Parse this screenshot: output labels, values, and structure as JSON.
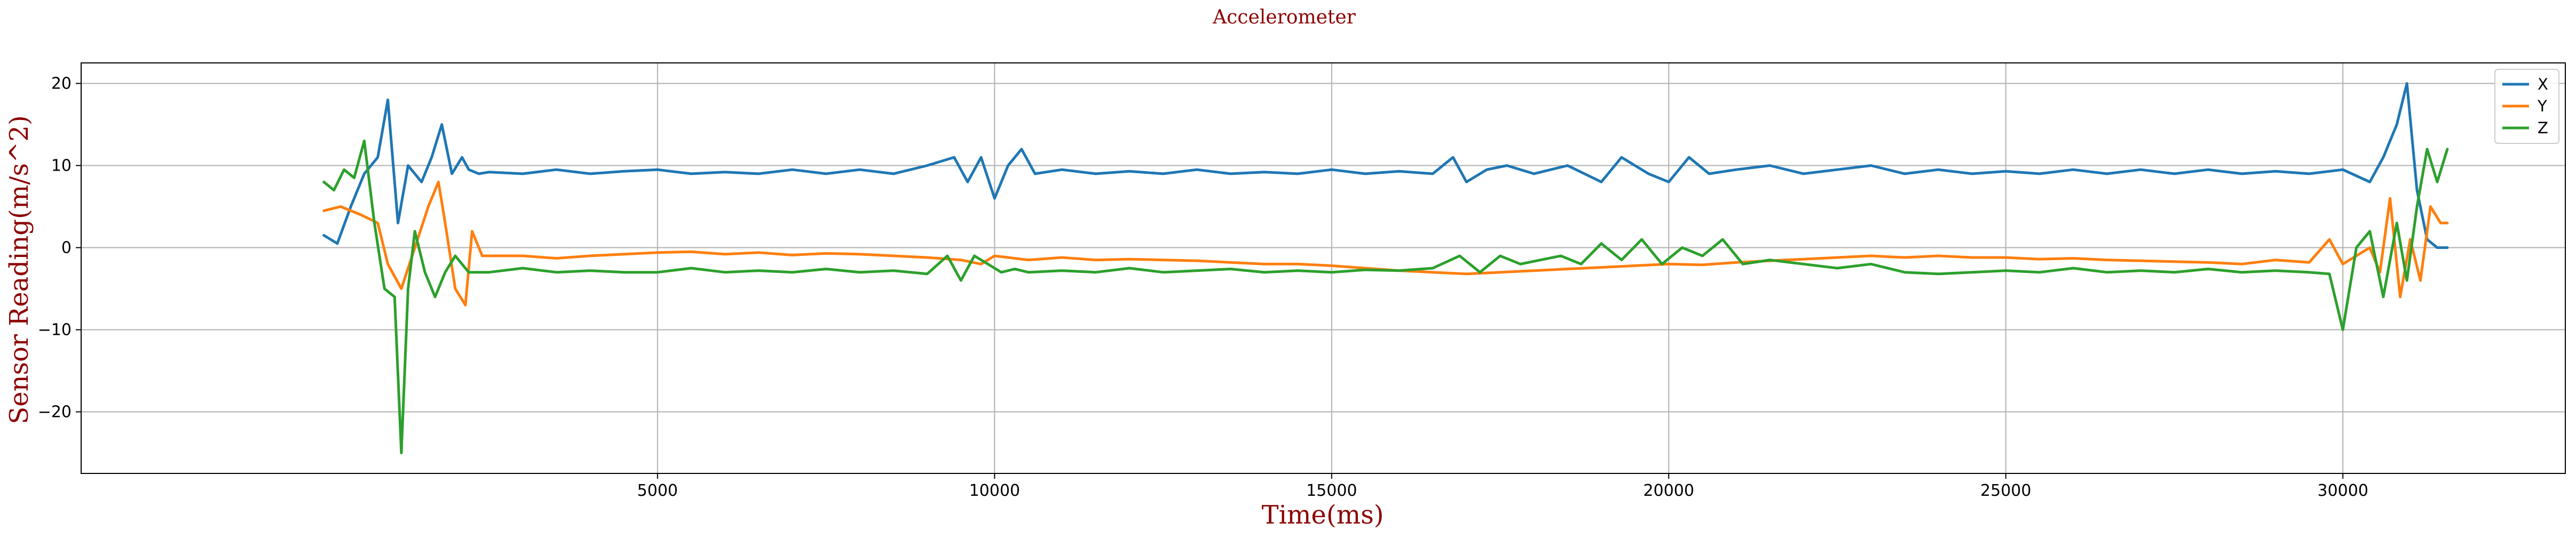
{
  "chart_data": {
    "type": "line",
    "title": "Accelerometer",
    "xlabel": "Time(ms)",
    "ylabel": "Sensor Reading(m/s^2)",
    "xlim": [
      -3550,
      33300
    ],
    "ylim": [
      -27.5,
      22.5
    ],
    "xticks": [
      5000,
      10000,
      15000,
      20000,
      25000,
      30000
    ],
    "yticks": [
      -20,
      -10,
      0,
      10,
      20
    ],
    "grid": true,
    "legend_position": "top-right",
    "label_color": "#8b0000",
    "series": [
      {
        "name": "X",
        "color": "#1f77b4",
        "x": [
          50,
          250,
          450,
          650,
          850,
          1000,
          1150,
          1300,
          1500,
          1650,
          1800,
          1950,
          2100,
          2200,
          2350,
          2500,
          3000,
          3500,
          4000,
          4500,
          5000,
          5500,
          6000,
          6500,
          7000,
          7500,
          8000,
          8500,
          9000,
          9400,
          9600,
          9800,
          10000,
          10200,
          10400,
          10600,
          11000,
          11500,
          12000,
          12500,
          13000,
          13500,
          14000,
          14500,
          15000,
          15500,
          16000,
          16500,
          16800,
          17000,
          17300,
          17600,
          18000,
          18500,
          19000,
          19300,
          19700,
          20000,
          20300,
          20600,
          21000,
          21500,
          22000,
          22500,
          23000,
          23500,
          24000,
          24500,
          25000,
          25500,
          26000,
          26500,
          27000,
          27500,
          28000,
          28500,
          29000,
          29500,
          30000,
          30400,
          30600,
          30800,
          30950,
          31100,
          31250,
          31400,
          31550
        ],
        "y": [
          1.5,
          0.5,
          5,
          9,
          11,
          18,
          3,
          10,
          8,
          11,
          15,
          9,
          11,
          9.5,
          9,
          9.2,
          9,
          9.5,
          9,
          9.3,
          9.5,
          9,
          9.2,
          9,
          9.5,
          9,
          9.5,
          9,
          10,
          11,
          8,
          11,
          6,
          10,
          12,
          9,
          9.5,
          9,
          9.3,
          9,
          9.5,
          9,
          9.2,
          9,
          9.5,
          9,
          9.3,
          9,
          11,
          8,
          9.5,
          10,
          9,
          10,
          8,
          11,
          9,
          8,
          11,
          9,
          9.5,
          10,
          9,
          9.5,
          10,
          9,
          9.5,
          9,
          9.3,
          9,
          9.5,
          9,
          9.5,
          9,
          9.5,
          9,
          9.3,
          9,
          9.5,
          8,
          11,
          15,
          20,
          7,
          1,
          0,
          0
        ]
      },
      {
        "name": "Y",
        "color": "#ff7f0e",
        "x": [
          50,
          300,
          600,
          850,
          1000,
          1200,
          1400,
          1600,
          1750,
          1850,
          2000,
          2150,
          2250,
          2400,
          3000,
          3500,
          4000,
          4500,
          5000,
          5500,
          6000,
          6500,
          7000,
          7500,
          8000,
          8500,
          9000,
          9500,
          9800,
          10000,
          10500,
          11000,
          11500,
          12000,
          12500,
          13000,
          13500,
          14000,
          14500,
          15000,
          15500,
          16000,
          16500,
          17000,
          17500,
          18000,
          18500,
          19000,
          19500,
          20000,
          20500,
          21000,
          21500,
          22000,
          22500,
          23000,
          23500,
          24000,
          24500,
          25000,
          25500,
          26000,
          26500,
          27000,
          27500,
          28000,
          28500,
          29000,
          29500,
          29800,
          30000,
          30200,
          30400,
          30550,
          30700,
          30850,
          31000,
          31150,
          31300,
          31450,
          31550
        ],
        "y": [
          4.5,
          5,
          4,
          3,
          -2,
          -5,
          0,
          5,
          8,
          3,
          -5,
          -7,
          2,
          -1,
          -1,
          -1.3,
          -1,
          -0.8,
          -0.6,
          -0.5,
          -0.8,
          -0.6,
          -0.9,
          -0.7,
          -0.8,
          -1,
          -1.2,
          -1.5,
          -2,
          -1,
          -1.5,
          -1.2,
          -1.5,
          -1.4,
          -1.5,
          -1.6,
          -1.8,
          -2,
          -2,
          -2.2,
          -2.5,
          -2.8,
          -3,
          -3.2,
          -3,
          -2.8,
          -2.6,
          -2.4,
          -2.2,
          -2,
          -2.1,
          -1.8,
          -1.6,
          -1.4,
          -1.2,
          -1,
          -1.2,
          -1,
          -1.2,
          -1.2,
          -1.4,
          -1.3,
          -1.5,
          -1.6,
          -1.7,
          -1.8,
          -2,
          -1.5,
          -1.8,
          1,
          -2,
          -1,
          0,
          -3,
          6,
          -6,
          1,
          -4,
          5,
          3,
          3
        ]
      },
      {
        "name": "Z",
        "color": "#2ca02c",
        "x": [
          50,
          200,
          350,
          500,
          650,
          800,
          950,
          1100,
          1200,
          1300,
          1400,
          1550,
          1700,
          1850,
          2000,
          2200,
          2500,
          3000,
          3500,
          4000,
          4500,
          5000,
          5500,
          6000,
          6500,
          7000,
          7500,
          8000,
          8500,
          9000,
          9300,
          9500,
          9700,
          9900,
          10100,
          10300,
          10500,
          11000,
          11500,
          12000,
          12500,
          13000,
          13500,
          14000,
          14500,
          15000,
          15500,
          16000,
          16500,
          16900,
          17200,
          17500,
          17800,
          18100,
          18400,
          18700,
          19000,
          19300,
          19600,
          19900,
          20200,
          20500,
          20800,
          21100,
          21500,
          22000,
          22500,
          23000,
          23500,
          24000,
          24500,
          25000,
          25500,
          26000,
          26500,
          27000,
          27500,
          28000,
          28500,
          29000,
          29500,
          29800,
          30000,
          30200,
          30400,
          30600,
          30800,
          30950,
          31100,
          31250,
          31400,
          31550
        ],
        "y": [
          8,
          7,
          9.5,
          8.5,
          13,
          3,
          -5,
          -6,
          -25,
          -5,
          2,
          -3,
          -6,
          -3,
          -1,
          -3,
          -3,
          -2.5,
          -3,
          -2.8,
          -3,
          -3,
          -2.5,
          -3,
          -2.8,
          -3,
          -2.6,
          -3,
          -2.8,
          -3.2,
          -1,
          -4,
          -1,
          -2,
          -3,
          -2.6,
          -3,
          -2.8,
          -3,
          -2.5,
          -3,
          -2.8,
          -2.6,
          -3,
          -2.8,
          -3,
          -2.7,
          -2.8,
          -2.5,
          -1,
          -3,
          -1,
          -2,
          -1.5,
          -1,
          -2,
          0.5,
          -1.5,
          1,
          -2,
          0,
          -1,
          1,
          -2,
          -1.5,
          -2,
          -2.5,
          -2,
          -3,
          -3.2,
          -3,
          -2.8,
          -3,
          -2.5,
          -3,
          -2.8,
          -3,
          -2.6,
          -3,
          -2.8,
          -3,
          -3.2,
          -10,
          0,
          2,
          -6,
          3,
          -4,
          5,
          12,
          8,
          12
        ]
      }
    ]
  }
}
